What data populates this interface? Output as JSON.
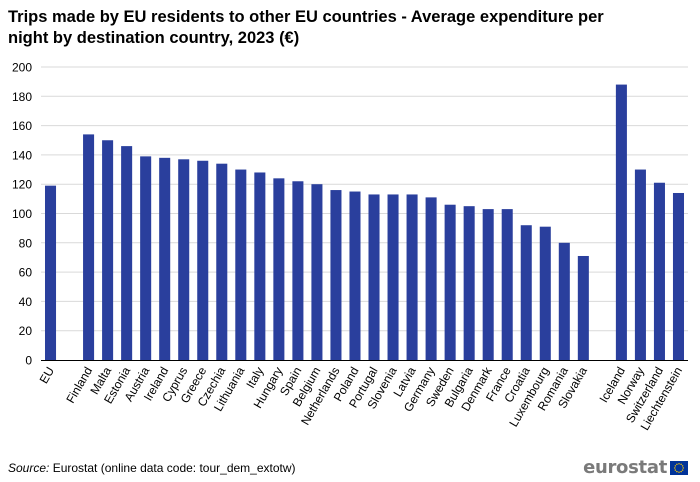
{
  "colors": {
    "bar": "#2a3f9d",
    "grid": "#d9d9d9",
    "axis": "#000000",
    "text": "#000000",
    "logo_text": "#7a7a7a",
    "flag_bg": "#003399",
    "flag_star": "#ffcc00"
  },
  "source": {
    "label": "Source:",
    "text": "Eurostat (online data code: tour_dem_extotw)"
  },
  "logo": {
    "text": "eurostat",
    "icon": "eu-flag-icon"
  },
  "chart_data": {
    "type": "bar",
    "title": "Trips made by EU residents to other EU countries - Average expenditure per night by destination country, 2023 (€)",
    "xlabel": "",
    "ylabel": "",
    "ylim": [
      0,
      200
    ],
    "yticks": [
      0,
      20,
      40,
      60,
      80,
      100,
      120,
      140,
      160,
      180,
      200
    ],
    "grid": true,
    "categories": [
      "EU",
      "",
      "Finland",
      "Malta",
      "Estonia",
      "Austria",
      "Ireland",
      "Cyprus",
      "Greece",
      "Czechia",
      "Lithuania",
      "Italy",
      "Hungary",
      "Spain",
      "Belgium",
      "Netherlands",
      "Poland",
      "Portugal",
      "Slovenia",
      "Latvia",
      "Germany",
      "Sweden",
      "Bulgaria",
      "Denmark",
      "France",
      "Croatia",
      "Luxembourg",
      "Romania",
      "Slovakia",
      "",
      "Iceland",
      "Norway",
      "Switzerland",
      "Liechtenstein"
    ],
    "values": [
      119,
      null,
      154,
      150,
      146,
      139,
      138,
      137,
      136,
      134,
      130,
      128,
      124,
      122,
      120,
      116,
      115,
      113,
      113,
      113,
      111,
      106,
      105,
      103,
      103,
      92,
      91,
      80,
      71,
      null,
      188,
      130,
      121,
      114
    ]
  }
}
